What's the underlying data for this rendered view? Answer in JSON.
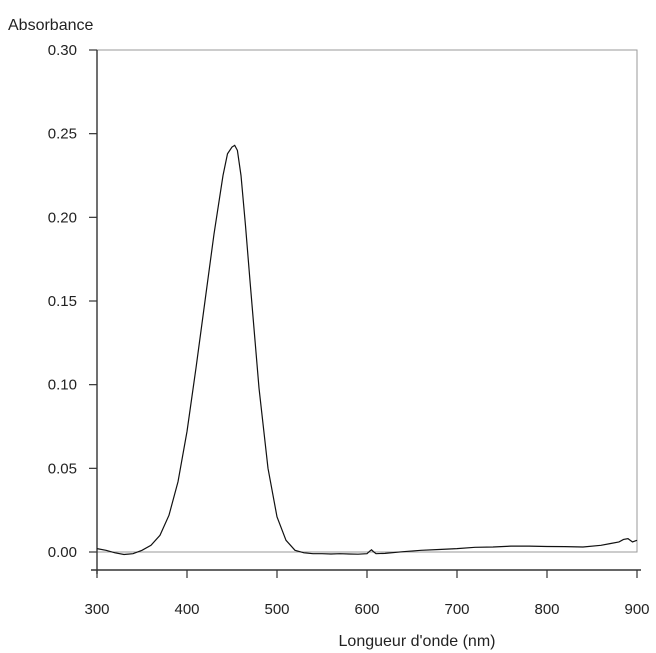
{
  "chart_data": {
    "type": "line",
    "title": "",
    "xlabel": "Longueur d'onde (nm)",
    "ylabel": "Absorbance",
    "xlim": [
      300,
      900
    ],
    "ylim": [
      0,
      0.3
    ],
    "x_ticks": [
      "300",
      "400",
      "500",
      "600",
      "700",
      "800",
      "900"
    ],
    "y_ticks": [
      "0.00",
      "0.05",
      "0.10",
      "0.15",
      "0.20",
      "0.25",
      "0.30"
    ],
    "x_tick_values": [
      300,
      400,
      500,
      600,
      700,
      800,
      900
    ],
    "y_tick_values": [
      0,
      0.05,
      0.1,
      0.15,
      0.2,
      0.25,
      0.3
    ],
    "grid": false,
    "line_color": "#111111",
    "series": [
      {
        "x": [
          300,
          310,
          320,
          330,
          340,
          350,
          360,
          370,
          380,
          390,
          400,
          410,
          420,
          430,
          440,
          445,
          450,
          453,
          456,
          460,
          465,
          470,
          480,
          490,
          500,
          510,
          520,
          530,
          540,
          550,
          560,
          570,
          580,
          590,
          600,
          603,
          605,
          607,
          610,
          620,
          640,
          660,
          680,
          700,
          720,
          740,
          760,
          780,
          800,
          820,
          840,
          860,
          870,
          880,
          885,
          890,
          895,
          900
        ],
        "y": [
          0.002,
          0.001,
          -0.0005,
          -0.0015,
          -0.001,
          0.001,
          0.004,
          0.01,
          0.022,
          0.042,
          0.072,
          0.11,
          0.15,
          0.19,
          0.225,
          0.238,
          0.242,
          0.243,
          0.24,
          0.225,
          0.195,
          0.162,
          0.098,
          0.05,
          0.021,
          0.007,
          0.001,
          -0.0005,
          -0.001,
          -0.001,
          -0.0012,
          -0.001,
          -0.0012,
          -0.0013,
          -0.001,
          0.0005,
          0.0013,
          0.0003,
          -0.001,
          -0.0008,
          0.0002,
          0.001,
          0.0015,
          0.002,
          0.0028,
          0.003,
          0.0035,
          0.0035,
          0.0033,
          0.0032,
          0.003,
          0.004,
          0.005,
          0.006,
          0.0075,
          0.008,
          0.006,
          0.007
        ]
      }
    ]
  }
}
